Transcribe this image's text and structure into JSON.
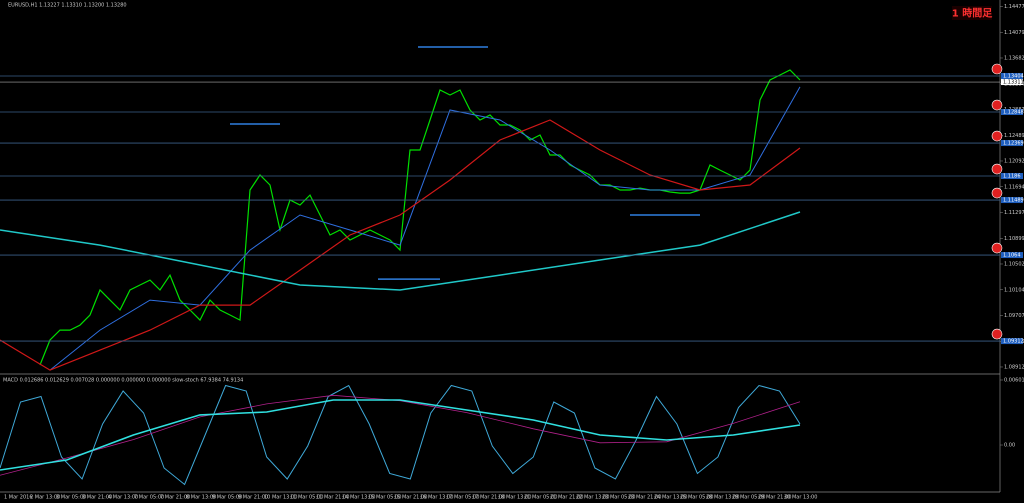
{
  "chart_data": [
    {
      "type": "line",
      "title": "EURUSD,H1 1.13227 1.13310 1.13200 1.13280",
      "annotation": "1 時間足",
      "ylim": [
        1.0885,
        1.145
      ],
      "yticks": [
        1.14477,
        1.14079,
        1.13682,
        1.13284,
        1.12887,
        1.12489,
        1.12092,
        1.11694,
        1.11297,
        1.10899,
        1.10502,
        1.10104,
        1.09707,
        1.09309,
        1.08912
      ],
      "xtick_labels": [
        "1 Mar 2016",
        "2 Mar 13:00",
        "3 Mar 05:00",
        "3 Mar 21:00",
        "4 Mar 13:00",
        "7 Mar 05:00",
        "7 Mar 21:00",
        "8 Mar 13:00",
        "9 Mar 05:00",
        "9 Mar 21:00",
        "10 Mar 13:00",
        "11 Mar 05:00",
        "11 Mar 21:00",
        "14 Mar 13:00",
        "15 Mar 05:00",
        "15 Mar 21:00",
        "16 Mar 13:00",
        "17 Mar 05:00",
        "17 Mar 21:00",
        "18 Mar 13:00",
        "21 Mar 05:00",
        "21 Mar 21:00",
        "22 Mar 13:00",
        "23 Mar 05:00",
        "23 Mar 21:00",
        "24 Mar 13:00",
        "25 Mar 05:00",
        "28 Mar 13:00",
        "29 Mar 05:00",
        "29 Mar 21:00",
        "30 Mar 13:00"
      ],
      "series": [
        {
          "color": "#00e000",
          "values": [
            1.08942,
            1.09328,
            1.09482,
            1.09482,
            1.09559,
            1.09714,
            1.101,
            1.09945,
            1.09791,
            1.101,
            1.10177,
            1.10254,
            1.101,
            1.10331,
            1.09945,
            1.09791,
            1.09636,
            1.09945,
            1.09791,
            1.09714,
            1.09636,
            1.11644,
            1.11875,
            1.11721,
            1.11026,
            1.11489,
            1.11412,
            1.11566,
            1.11258,
            1.10949,
            1.11026,
            1.10872,
            1.10949,
            1.11026,
            1.10949,
            1.10872,
            1.10717,
            1.12261,
            1.12261,
            1.12724,
            1.13188,
            1.1311,
            1.13188,
            1.12879,
            1.12724,
            1.12802,
            1.12647,
            1.12647,
            1.1257,
            1.12416,
            1.12493,
            1.12184,
            1.12184,
            1.1203,
            1.11952,
            1.11875,
            1.11721,
            1.11721,
            1.11644,
            1.11644,
            1.11674,
            1.11644,
            1.11644,
            1.11613,
            1.11597,
            1.11597,
            1.11644,
            1.1203,
            1.11952,
            1.11875,
            1.11798,
            1.11952,
            1.13033,
            1.13342,
            1.13419,
            1.13496,
            1.13342
          ]
        },
        {
          "color": "#2f6fe0",
          "values": [
            1.08864,
            1.09482,
            1.09945,
            1.09868,
            1.10717,
            1.11258,
            1.11026,
            1.10794,
            1.12879,
            1.12724,
            1.12261,
            1.11721,
            1.11644,
            1.11644,
            1.11875,
            1.13235
          ]
        },
        {
          "color": "#d01818",
          "values": [
            1.09328,
            1.08864,
            1.09173,
            1.09482,
            1.09868,
            1.09868,
            1.10408,
            1.10949,
            1.11258,
            1.11798,
            1.12416,
            1.12724,
            1.12261,
            1.11875,
            1.11644,
            1.11721,
            1.12292
          ]
        },
        {
          "color": "#20c8c8",
          "values": [
            1.11026,
            1.10794,
            1.10486,
            1.10177,
            1.101,
            1.10331,
            1.10563,
            1.10794,
            1.11304
          ]
        }
      ],
      "levels": [
        1.13404,
        1.12848,
        1.12369,
        1.1186,
        1.11489,
        1.1064,
        1.09312
      ],
      "price_line": 1.13311,
      "fractals": [
        1.12663,
        1.13852,
        1.10269,
        1.11258
      ]
    },
    {
      "type": "line",
      "title": "MACD 0.012686 0.012629 0.007028 0.000000 0.000000 0.000000 slow-stoch 67.9384 74.9134",
      "ylim": [
        -0.00416,
        0.006011
      ],
      "yticks": [
        0.006011,
        {
          "value": 0,
          "label": "0.00"
        }
      ],
      "y2lim": [
        0,
        100
      ],
      "series": [
        {
          "color": "#3fa9d8",
          "axis": "y2",
          "values": [
            20,
            80,
            85,
            30,
            10,
            60,
            90,
            70,
            20,
            5,
            50,
            95,
            90,
            30,
            10,
            40,
            85,
            95,
            60,
            15,
            10,
            70,
            95,
            90,
            40,
            15,
            30,
            80,
            70,
            20,
            10,
            45,
            85,
            60,
            15,
            30,
            75,
            95,
            90,
            60
          ]
        },
        {
          "color": "#b0208a",
          "values": [
            -0.0028,
            -0.0012,
            0.0005,
            0.0026,
            0.0038,
            0.0046,
            0.0041,
            0.003,
            0.0015,
            0.0002,
            0.0003,
            0.002,
            0.004
          ]
        },
        {
          "color": "#30e0e0",
          "values": [
            -0.00231,
            -0.00139,
            0.00093,
            0.00278,
            0.00305,
            0.00416,
            0.00416,
            0.00324,
            0.00231,
            0.00093,
            0.00046,
            0.00093,
            0.00185
          ]
        }
      ]
    }
  ]
}
